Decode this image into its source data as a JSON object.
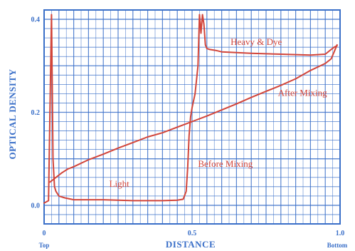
{
  "chart_data": {
    "type": "line",
    "xlabel": "DISTANCE",
    "ylabel": "OPTICAL DENSITY",
    "xlim": [
      0,
      1.0
    ],
    "ylim": [
      -0.04,
      0.42
    ],
    "x_ticks": [
      {
        "value": 0,
        "label": "0"
      },
      {
        "value": 0.5,
        "label": "0.5"
      },
      {
        "value": 1.0,
        "label": "1.0"
      }
    ],
    "y_ticks": [
      {
        "value": 0.0,
        "label": "0.0"
      },
      {
        "value": 0.2,
        "label": "0.2"
      },
      {
        "value": 0.4,
        "label": "0.4"
      }
    ],
    "end_labels": {
      "left": "Top",
      "right": "Bottom"
    },
    "grid": true,
    "series": [
      {
        "name": "Before Mixing",
        "color": "#d2453a",
        "x": [
          0,
          0.015,
          0.025,
          0.03,
          0.035,
          0.04,
          0.05,
          0.07,
          0.1,
          0.2,
          0.3,
          0.4,
          0.45,
          0.47,
          0.48,
          0.485,
          0.49,
          0.495,
          0.5,
          0.51,
          0.52,
          0.525,
          0.53,
          0.535,
          0.54,
          0.545,
          0.55,
          0.56,
          0.58,
          0.6,
          0.7,
          0.8,
          0.9,
          0.95,
          0.97,
          0.98,
          0.99
        ],
        "y": [
          0.005,
          0.01,
          0.41,
          0.1,
          0.04,
          0.03,
          0.02,
          0.016,
          0.012,
          0.012,
          0.01,
          0.01,
          0.011,
          0.013,
          0.03,
          0.08,
          0.15,
          0.19,
          0.21,
          0.24,
          0.3,
          0.41,
          0.37,
          0.41,
          0.39,
          0.345,
          0.337,
          0.335,
          0.333,
          0.33,
          0.327,
          0.325,
          0.323,
          0.325,
          0.335,
          0.34,
          0.343
        ]
      },
      {
        "name": "After Mixing",
        "color": "#d2453a",
        "x": [
          0.02,
          0.03,
          0.04,
          0.05,
          0.06,
          0.08,
          0.1,
          0.15,
          0.2,
          0.25,
          0.3,
          0.35,
          0.4,
          0.45,
          0.5,
          0.55,
          0.6,
          0.65,
          0.7,
          0.75,
          0.8,
          0.85,
          0.9,
          0.95,
          0.97,
          0.98,
          0.99
        ],
        "y": [
          0.05,
          0.055,
          0.06,
          0.065,
          0.07,
          0.078,
          0.083,
          0.098,
          0.11,
          0.123,
          0.135,
          0.147,
          0.156,
          0.168,
          0.18,
          0.192,
          0.205,
          0.218,
          0.232,
          0.245,
          0.258,
          0.272,
          0.29,
          0.305,
          0.315,
          0.33,
          0.345
        ]
      }
    ],
    "annotations": [
      {
        "text": "Heavy & Dye",
        "x": 0.63,
        "y": 0.345
      },
      {
        "text": "After Mixing",
        "x": 0.79,
        "y": 0.235
      },
      {
        "text": "Before Mixing",
        "x": 0.52,
        "y": 0.083
      },
      {
        "text": "Light",
        "x": 0.22,
        "y": 0.04
      }
    ]
  }
}
